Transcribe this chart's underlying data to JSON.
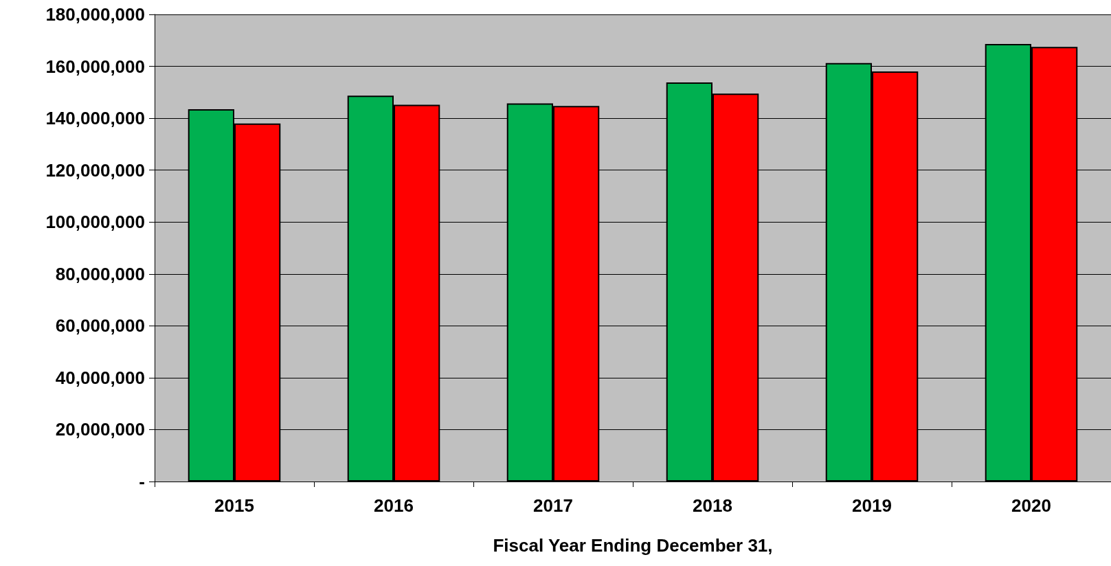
{
  "chart_data": {
    "type": "bar",
    "xlabel": "Fiscal Year Ending December 31,",
    "categories": [
      "2015",
      "2016",
      "2017",
      "2018",
      "2019",
      "2020"
    ],
    "series": [
      {
        "color": "#00b050",
        "values": [
          143500000,
          148700000,
          145700000,
          153800000,
          161300000,
          168600000
        ]
      },
      {
        "color": "#ff0000",
        "values": [
          138000000,
          145200000,
          144700000,
          149500000,
          158000000,
          167500000
        ]
      }
    ],
    "ylim": [
      0,
      180000000
    ],
    "yticks": [
      {
        "value": 0,
        "label": "-"
      },
      {
        "value": 20000000,
        "label": "20,000,000"
      },
      {
        "value": 40000000,
        "label": "40,000,000"
      },
      {
        "value": 60000000,
        "label": "60,000,000"
      },
      {
        "value": 80000000,
        "label": "80,000,000"
      },
      {
        "value": 100000000,
        "label": "100,000,000"
      },
      {
        "value": 120000000,
        "label": "120,000,000"
      },
      {
        "value": 140000000,
        "label": "140,000,000"
      },
      {
        "value": 160000000,
        "label": "160,000,000"
      },
      {
        "value": 180000000,
        "label": "180,000,000"
      }
    ],
    "grid": "y"
  }
}
